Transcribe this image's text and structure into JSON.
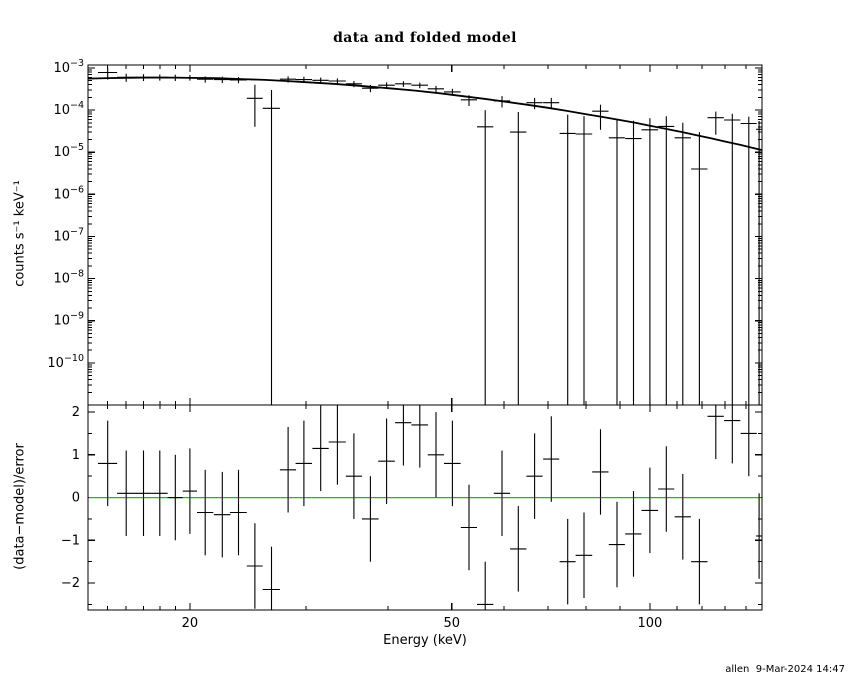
{
  "title": "data and folded model",
  "footer": "allen  9-Mar-2024 14:47",
  "colors": {
    "foreground": "#000000",
    "background": "#ffffff",
    "data": "#000000",
    "model": "#000000",
    "zero_line": "#00cc00"
  },
  "chart_data": {
    "type": "scatter",
    "title": "data and folded model",
    "xlabel": "Energy (keV)",
    "x_scale": "log",
    "x_range": [
      14,
      148
    ],
    "x_major_ticks": [
      20,
      50,
      100
    ],
    "x_tick_labels": [
      "20",
      "50",
      "100"
    ],
    "x_minor_ticks": [
      15,
      16,
      17,
      18,
      19,
      30,
      40,
      60,
      70,
      80,
      90,
      110,
      120,
      130,
      140
    ],
    "legend": "none",
    "grid": false,
    "panels": [
      {
        "name": "spectrum",
        "ylabel": "counts s⁻¹ keV⁻¹",
        "y_scale": "log",
        "y_log_range": [
          -11.0,
          -2.93
        ],
        "y_tick_exponents": [
          -3,
          -4,
          -5,
          -6,
          -7,
          -8,
          -9,
          -10
        ],
        "data": {
          "x": [
            15.0,
            16.0,
            17.0,
            18.0,
            19.0,
            20.0,
            21.1,
            22.4,
            23.7,
            25.1,
            26.6,
            28.2,
            29.8,
            31.6,
            33.5,
            35.5,
            37.6,
            39.8,
            42.2,
            44.7,
            47.3,
            50.1,
            53.1,
            56.2,
            59.6,
            63.1,
            66.8,
            70.8,
            75.0,
            79.4,
            84.1,
            89.1,
            94.4,
            100.0,
            105.9,
            112.2,
            118.9,
            125.9,
            133.4,
            141.3,
            146.5
          ],
          "dx": [
            0.5,
            0.5,
            0.5,
            0.5,
            0.5,
            0.5,
            0.6,
            0.65,
            0.7,
            0.7,
            0.8,
            0.8,
            0.85,
            0.9,
            1.0,
            1.0,
            1.1,
            1.15,
            1.2,
            1.3,
            1.35,
            1.45,
            1.5,
            1.6,
            1.7,
            1.8,
            1.9,
            2.0,
            2.1,
            2.3,
            2.4,
            2.5,
            2.7,
            2.9,
            3.0,
            3.2,
            3.4,
            3.6,
            3.8,
            4.0,
            1.5
          ],
          "y": [
            0.00078,
            0.0006,
            0.0006,
            0.0006,
            0.00059,
            0.00059,
            0.00054,
            0.00053,
            0.00052,
            0.00019,
            0.00011,
            0.00054,
            0.00053,
            0.00051,
            0.00049,
            0.00042,
            0.00033,
            0.00039,
            0.00042,
            0.00039,
            0.00032,
            0.00027,
            0.000175,
            4e-05,
            0.000165,
            3e-05,
            0.00015,
            0.00015,
            2.8e-05,
            2.7e-05,
            9.4e-05,
            2.2e-05,
            2.1e-05,
            3.4e-05,
            4.1e-05,
            2.2e-05,
            4e-06,
            6.6e-05,
            5.8e-05,
            4.8e-05,
            3.5e-05
          ],
          "ehi": [
            0.00025,
            0.00013,
            0.00011,
            0.0001,
            0.0001,
            9e-05,
            9e-05,
            9e-05,
            8.5e-05,
            0.00021,
            0.00019,
            9e-05,
            9e-05,
            8e-05,
            7.5e-05,
            7e-05,
            6.5e-05,
            6.5e-05,
            6.5e-05,
            6e-05,
            5.5e-05,
            5e-05,
            5e-05,
            6e-05,
            5e-05,
            6e-05,
            4.5e-05,
            4.5e-05,
            5e-05,
            4.5e-05,
            4e-05,
            4e-05,
            3.5e-05,
            3e-05,
            3e-05,
            2.8e-05,
            2.6e-05,
            2.6e-05,
            2.4e-05,
            2.2e-05,
            2e-05
          ],
          "elo": [
            0.00025,
            0.00013,
            0.00011,
            0.0001,
            0.0001,
            9e-05,
            9e-05,
            9e-05,
            8.5e-05,
            0.00015,
            null,
            9e-05,
            9e-05,
            8e-05,
            7.5e-05,
            7e-05,
            6.5e-05,
            6.5e-05,
            6.5e-05,
            6e-05,
            5.5e-05,
            5e-05,
            5e-05,
            null,
            5e-05,
            null,
            4.5e-05,
            4.5e-05,
            null,
            null,
            6e-05,
            null,
            null,
            null,
            null,
            null,
            null,
            4e-05,
            null,
            null,
            null
          ]
        },
        "model": {
          "x": [
            14,
            15,
            16,
            17,
            18,
            19,
            20,
            22,
            24,
            26,
            28,
            30,
            33,
            36,
            40,
            44,
            48,
            52,
            56,
            60,
            65,
            70,
            75,
            80,
            85,
            90,
            95,
            100,
            106,
            112,
            118,
            124,
            130,
            137,
            144,
            148
          ],
          "y": [
            0.00056,
            0.000575,
            0.000585,
            0.00059,
            0.00059,
            0.00059,
            0.00058,
            0.00057,
            0.000545,
            0.00052,
            0.00049,
            0.00046,
            0.00042,
            0.00038,
            0.00033,
            0.00029,
            0.00025,
            0.000214,
            0.000185,
            0.00016,
            0.000134,
            0.000113,
            9.5e-05,
            8e-05,
            6.8e-05,
            5.8e-05,
            5e-05,
            4.25e-05,
            3.55e-05,
            3e-05,
            2.5e-05,
            2.13e-05,
            1.8e-05,
            1.5e-05,
            1.24e-05,
            1.12e-05
          ]
        }
      },
      {
        "name": "residuals",
        "ylabel": "(data−model)/error",
        "y_scale": "linear",
        "y_range": [
          -2.63,
          2.165
        ],
        "y_major_ticks": [
          2,
          1,
          0,
          -1,
          -2
        ],
        "y_minor_ticks": [
          1.5,
          0.5,
          -0.5,
          -1.5,
          -2.5
        ],
        "zero_line": 0,
        "data": {
          "x": [
            15.0,
            16.0,
            17.0,
            18.0,
            19.0,
            20.0,
            21.1,
            22.4,
            23.7,
            25.1,
            26.6,
            28.2,
            29.8,
            31.6,
            33.5,
            35.5,
            37.6,
            39.8,
            42.2,
            44.7,
            47.3,
            50.1,
            53.1,
            56.2,
            59.6,
            63.1,
            66.8,
            70.8,
            75.0,
            79.4,
            84.1,
            89.1,
            94.4,
            100.0,
            105.9,
            112.2,
            118.9,
            125.9,
            133.4,
            141.3,
            146.5
          ],
          "dx": [
            0.5,
            0.5,
            0.5,
            0.5,
            0.5,
            0.5,
            0.6,
            0.65,
            0.7,
            0.7,
            0.8,
            0.8,
            0.85,
            0.9,
            1.0,
            1.0,
            1.1,
            1.15,
            1.2,
            1.3,
            1.35,
            1.45,
            1.5,
            1.6,
            1.7,
            1.8,
            1.9,
            2.0,
            2.1,
            2.3,
            2.4,
            2.5,
            2.7,
            2.9,
            3.0,
            3.2,
            3.4,
            3.6,
            3.8,
            4.0,
            1.5
          ],
          "y": [
            0.8,
            0.1,
            0.1,
            0.1,
            0.0,
            0.15,
            -0.35,
            -0.4,
            -0.35,
            -1.6,
            -2.15,
            0.65,
            0.8,
            1.15,
            1.3,
            0.5,
            -0.5,
            0.85,
            1.75,
            1.7,
            1.0,
            0.8,
            -0.7,
            -2.5,
            0.1,
            -1.2,
            0.5,
            0.9,
            -1.5,
            -1.35,
            0.6,
            -1.1,
            -0.85,
            -0.3,
            0.2,
            -0.45,
            -1.5,
            1.9,
            1.8,
            1.5,
            -0.9
          ],
          "err": 1.0
        }
      }
    ]
  }
}
